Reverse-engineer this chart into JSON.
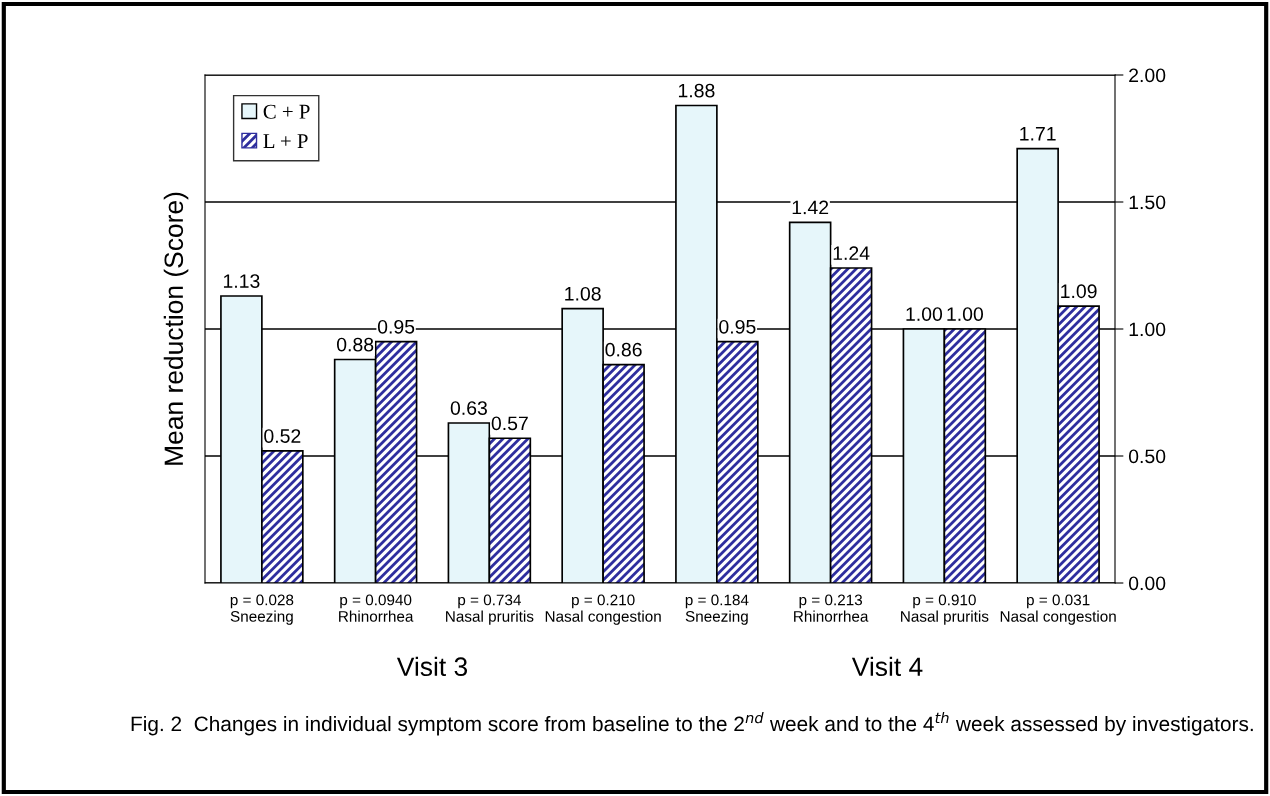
{
  "chart_data": {
    "type": "bar",
    "ylabel": "Mean reduction (Score)",
    "categories": [
      "p = 0.028\nSneezing",
      "p = 0.0940\nRhinorrhea",
      "p = 0.734\nNasal pruritis",
      "p = 0.210\nNasal congestion",
      "p = 0.184\nSneezing",
      "p = 0.213\nRhinorrhea",
      "p = 0.910\nNasal pruritis",
      "p = 0.031\nNasal congestion"
    ],
    "series": [
      {
        "name": "C + P",
        "color": "#e6f6fa",
        "values": [
          1.13,
          0.88,
          0.63,
          1.08,
          1.88,
          1.42,
          1.0,
          1.71
        ],
        "value_labels": [
          "1.13",
          "0.88",
          "0.63",
          "1.08",
          "1.88",
          "1.42",
          "1.00",
          "1.71"
        ]
      },
      {
        "name": "L + P",
        "color": "#2e2e9e",
        "values": [
          0.52,
          0.95,
          0.57,
          0.86,
          0.95,
          1.24,
          1.0,
          1.09
        ],
        "value_labels": [
          "0.52",
          "0.95",
          "0.57",
          "0.86",
          "0.95",
          "1.24",
          "1.00",
          "1.09"
        ]
      }
    ],
    "ylim": [
      0,
      2
    ],
    "yticks": [
      {
        "value": 0,
        "label": "0.00"
      },
      {
        "value": 0.5,
        "label": "0.50"
      },
      {
        "value": 1,
        "label": "1.00"
      },
      {
        "value": 1.5,
        "label": "1.50"
      },
      {
        "value": 2,
        "label": "2.00"
      }
    ],
    "grid": "y",
    "legend": "top left",
    "annotations": [
      "Visit 3",
      "Visit 4",
      "Fig. 2  Changes in individual symptom score from baseline to the 2$^{nd}$ week and to the 4$^{th}$ week assessed by investigators."
    ]
  }
}
